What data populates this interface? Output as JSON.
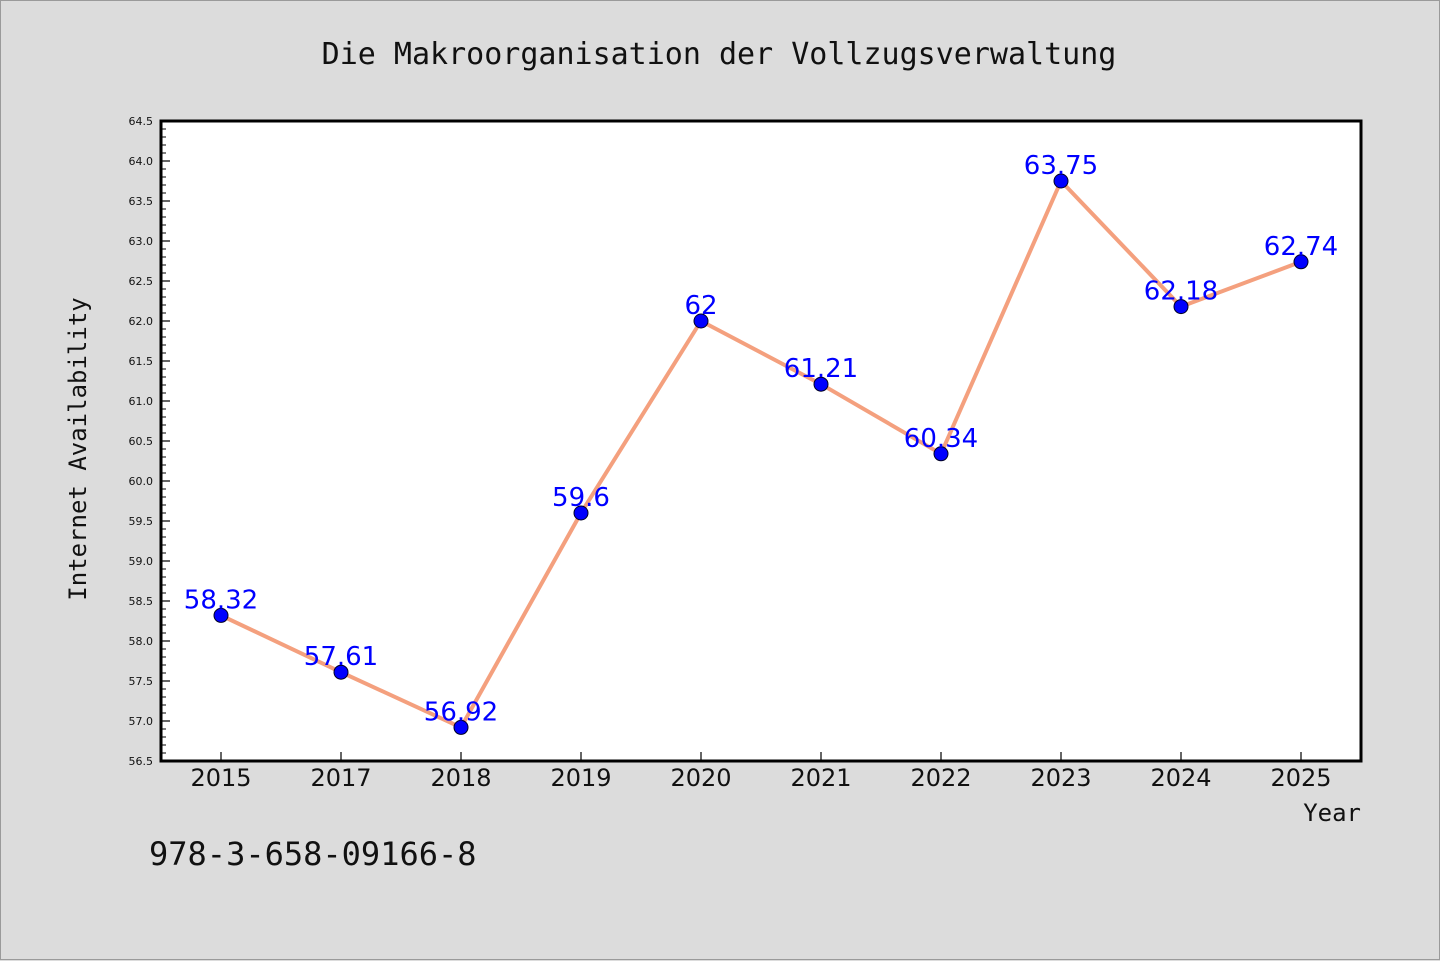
{
  "chart_data": {
    "type": "line",
    "title": "Die Makroorganisation der Vollzugsverwaltung",
    "xlabel": "Year",
    "ylabel": "Internet Availability",
    "categories": [
      "2015",
      "2017",
      "2018",
      "2019",
      "2020",
      "2021",
      "2022",
      "2023",
      "2024",
      "2025"
    ],
    "values": [
      58.32,
      57.61,
      56.92,
      59.6,
      62,
      61.21,
      60.34,
      63.75,
      62.18,
      62.74
    ],
    "data_labels": [
      "58.32",
      "57.61",
      "56.92",
      "59.6",
      "62",
      "61.21",
      "60.34",
      "63.75",
      "62.18",
      "62.74"
    ],
    "ylim": [
      56.5,
      64.5
    ],
    "yticks": [
      "56.5",
      "57.0",
      "57.5",
      "58.0",
      "58.5",
      "59.0",
      "59.5",
      "60.0",
      "60.5",
      "61.0",
      "61.5",
      "62.0",
      "62.5",
      "63.0",
      "63.5",
      "64.0",
      "64.5"
    ],
    "grid": false,
    "legend": "none",
    "colors": {
      "line": "#f4a07e",
      "marker": "#0000ff",
      "data_label": "#0000ff",
      "background": "#dcdcdc",
      "plot_background": "#ffffff"
    }
  },
  "footer": {
    "isbn": "978-3-658-09166-8"
  }
}
